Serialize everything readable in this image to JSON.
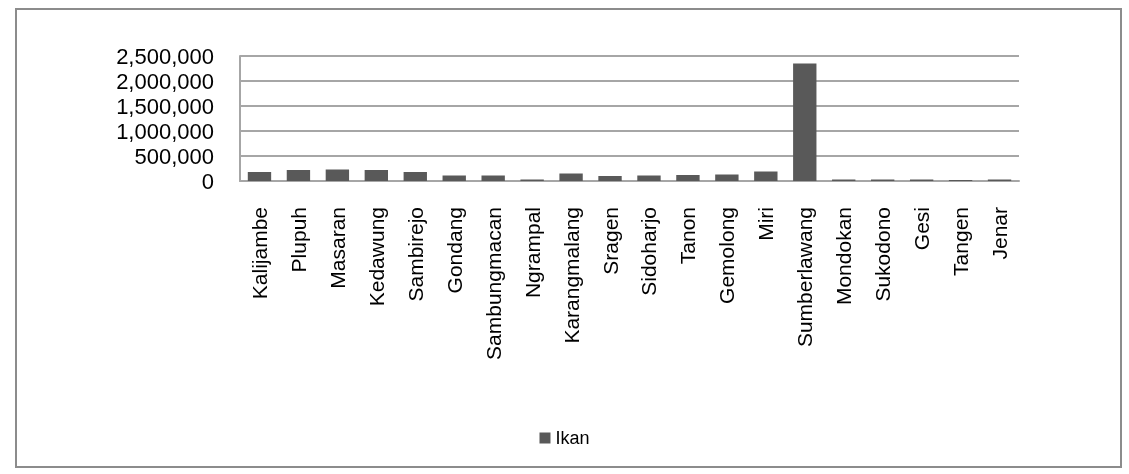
{
  "chart_data": {
    "type": "bar",
    "categories": [
      "Kalijambe",
      "Plupuh",
      "Masaran",
      "Kedawung",
      "Sambirejo",
      "Gondang",
      "Sambungmacan",
      "Ngrampal",
      "Karangmalang",
      "Sragen",
      "Sidoharjo",
      "Tanon",
      "Gemolong",
      "Miri",
      "Sumberlawang",
      "Mondokan",
      "Sukodono",
      "Gesi",
      "Tangen",
      "Jenar"
    ],
    "series": [
      {
        "name": "Ikan",
        "color": "#595959",
        "values": [
          180000,
          220000,
          230000,
          220000,
          180000,
          110000,
          110000,
          30000,
          150000,
          100000,
          110000,
          120000,
          130000,
          190000,
          2350000,
          30000,
          30000,
          30000,
          20000,
          30000
        ]
      }
    ],
    "ylim": [
      0,
      2500000
    ],
    "yticks": [
      {
        "value": 0,
        "label": "0"
      },
      {
        "value": 500000,
        "label": "500,000"
      },
      {
        "value": 1000000,
        "label": "1,000,000"
      },
      {
        "value": 1500000,
        "label": "1,500,000"
      },
      {
        "value": 2000000,
        "label": "2,000,000"
      },
      {
        "value": 2500000,
        "label": "2,500,000"
      }
    ],
    "grid": "y",
    "legend": "bottom"
  }
}
